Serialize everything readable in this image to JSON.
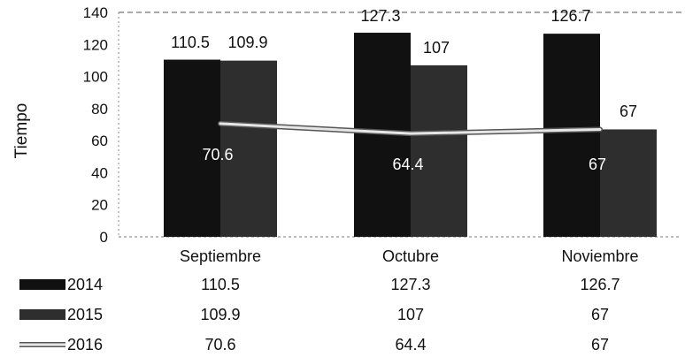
{
  "chart_data": {
    "type": "bar",
    "categories": [
      "Septiembre",
      "Octubre",
      "Noviembre"
    ],
    "series": [
      {
        "name": "2014",
        "kind": "bar",
        "values": [
          110.5,
          127.3,
          126.7
        ],
        "color": "#111111"
      },
      {
        "name": "2015",
        "kind": "bar",
        "values": [
          109.9,
          107,
          67
        ],
        "color": "#2e2e2e"
      },
      {
        "name": "2016",
        "kind": "line",
        "values": [
          70.6,
          64.4,
          67
        ],
        "color": "#e6e6e6"
      }
    ],
    "data_labels": {
      "2014": [
        "110.5",
        "127.3",
        "126.7"
      ],
      "2015": [
        "109.9",
        "107",
        "67"
      ],
      "2016": [
        "70.6",
        "64.4",
        "67"
      ]
    },
    "ylabel": "Tiempo",
    "xlabel": "",
    "title": "",
    "ylim": [
      0,
      140
    ],
    "yticks": [
      0,
      20,
      40,
      60,
      80,
      100,
      120,
      140
    ],
    "grid": false,
    "legend": "data-table-below",
    "data_table": {
      "rows": [
        {
          "series": "2014",
          "values": [
            "110.5",
            "127.3",
            "126.7"
          ]
        },
        {
          "series": "2015",
          "values": [
            "109.9",
            "107",
            "67"
          ]
        },
        {
          "series": "2016",
          "values": [
            "70.6",
            "64.4",
            "67"
          ]
        }
      ]
    }
  }
}
